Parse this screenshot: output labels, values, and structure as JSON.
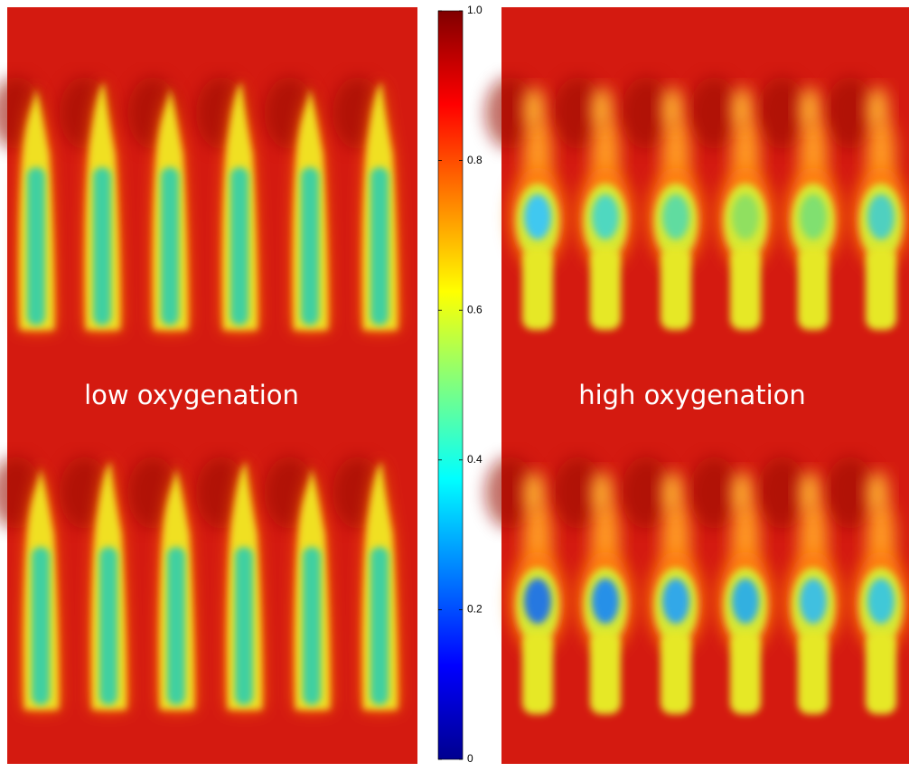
{
  "labels": {
    "left": "low oxygenation",
    "right": "high oxygenation"
  },
  "colorbar": {
    "lim": [
      0,
      1
    ],
    "ticks": [
      0,
      0.2,
      0.4,
      0.6,
      0.8,
      {
        "value": 1,
        "label": "1.0"
      }
    ]
  }
}
